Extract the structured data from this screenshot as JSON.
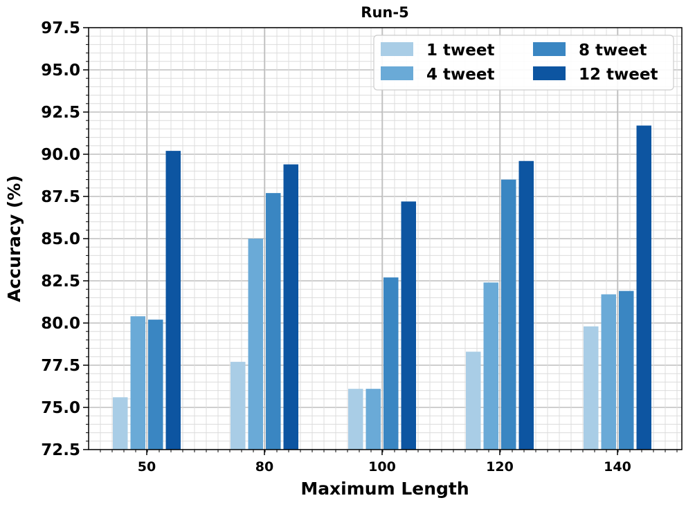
{
  "chart_data": {
    "type": "bar",
    "title": "Run-5",
    "xlabel": "Maximum Length",
    "ylabel": "Accuracy (%)",
    "categories": [
      "50",
      "80",
      "100",
      "120",
      "140"
    ],
    "ylim": [
      72.5,
      97.5
    ],
    "yticks": [
      "72.5",
      "75.0",
      "77.5",
      "80.0",
      "82.5",
      "85.0",
      "87.5",
      "90.0",
      "92.5",
      "95.0",
      "97.5"
    ],
    "grid": true,
    "legend_position": "top-right",
    "series": [
      {
        "name": "1 tweet",
        "color": "#a9cde6",
        "values": [
          75.6,
          77.7,
          76.1,
          78.3,
          79.8
        ]
      },
      {
        "name": "4 tweet",
        "color": "#6aaad7",
        "values": [
          80.4,
          85.0,
          76.1,
          82.4,
          81.7
        ]
      },
      {
        "name": "8 tweet",
        "color": "#3a86c2",
        "values": [
          80.2,
          87.7,
          82.7,
          88.5,
          81.9
        ]
      },
      {
        "name": "12 tweet",
        "color": "#0d55a1",
        "values": [
          90.2,
          89.4,
          87.2,
          89.6,
          91.7
        ]
      }
    ]
  }
}
